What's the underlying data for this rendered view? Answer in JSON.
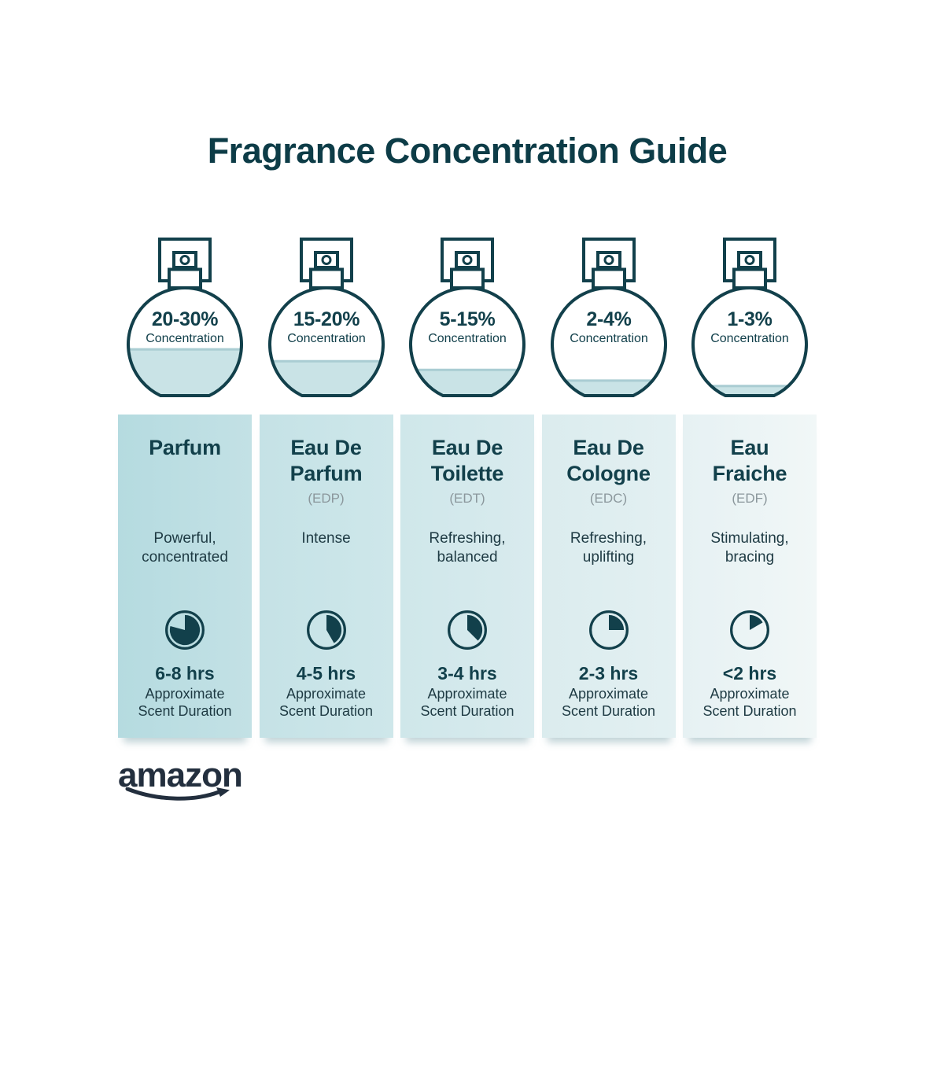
{
  "title": "Fragrance Concentration Guide",
  "colors": {
    "ink": "#12404b",
    "text": "#1e3a43",
    "abbr_gray": "#8b979c",
    "liquid": "#c9e3e6",
    "liquid_edge": "#aacdd3",
    "title": "#0d3c47",
    "logo": "#232f3e"
  },
  "logo": {
    "text": "amazon"
  },
  "columns": [
    {
      "bottle": {
        "range": "20-30%",
        "label": "Concentration",
        "fill_percent": 44
      },
      "card": {
        "name": "Parfum",
        "abbr": "",
        "description": "Powerful,\nconcentrated",
        "bg_left": "#b5dbe0",
        "bg_right": "#c3e1e5"
      },
      "clock": {
        "sweep_deg": 285
      },
      "duration": {
        "hours": "6-8 hrs",
        "label": "Approximate\nScent Duration"
      }
    },
    {
      "bottle": {
        "range": "15-20%",
        "label": "Concentration",
        "fill_percent": 33
      },
      "card": {
        "name": "Eau De\nParfum",
        "abbr": "(EDP)",
        "description": "Intense",
        "bg_left": "#c5e2e6",
        "bg_right": "#cee7ea"
      },
      "clock": {
        "sweep_deg": 150
      },
      "duration": {
        "hours": "4-5 hrs",
        "label": "Approximate\nScent Duration"
      }
    },
    {
      "bottle": {
        "range": "5-15%",
        "label": "Concentration",
        "fill_percent": 25
      },
      "card": {
        "name": "Eau De\nToilette",
        "abbr": "(EDT)",
        "description": "Refreshing,\nbalanced",
        "bg_left": "#cfe7ea",
        "bg_right": "#d9ebee"
      },
      "clock": {
        "sweep_deg": 135
      },
      "duration": {
        "hours": "3-4 hrs",
        "label": "Approximate\nScent Duration"
      }
    },
    {
      "bottle": {
        "range": "2-4%",
        "label": "Concentration",
        "fill_percent": 15
      },
      "card": {
        "name": "Eau De\nCologne",
        "abbr": "(EDC)",
        "description": "Refreshing,\nuplifting",
        "bg_left": "#dbecee",
        "bg_right": "#e3f0f2"
      },
      "clock": {
        "sweep_deg": 90
      },
      "duration": {
        "hours": "2-3 hrs",
        "label": "Approximate\nScent Duration"
      }
    },
    {
      "bottle": {
        "range": "1-3%",
        "label": "Concentration",
        "fill_percent": 10
      },
      "card": {
        "name": "Eau\nFraiche",
        "abbr": "(EDF)",
        "description": "Stimulating,\nbracing",
        "bg_left": "#e6f1f3",
        "bg_right": "#f1f7f7"
      },
      "clock": {
        "sweep_deg": 60
      },
      "duration": {
        "hours": "<2 hrs",
        "label": "Approximate\nScent Duration"
      }
    }
  ]
}
